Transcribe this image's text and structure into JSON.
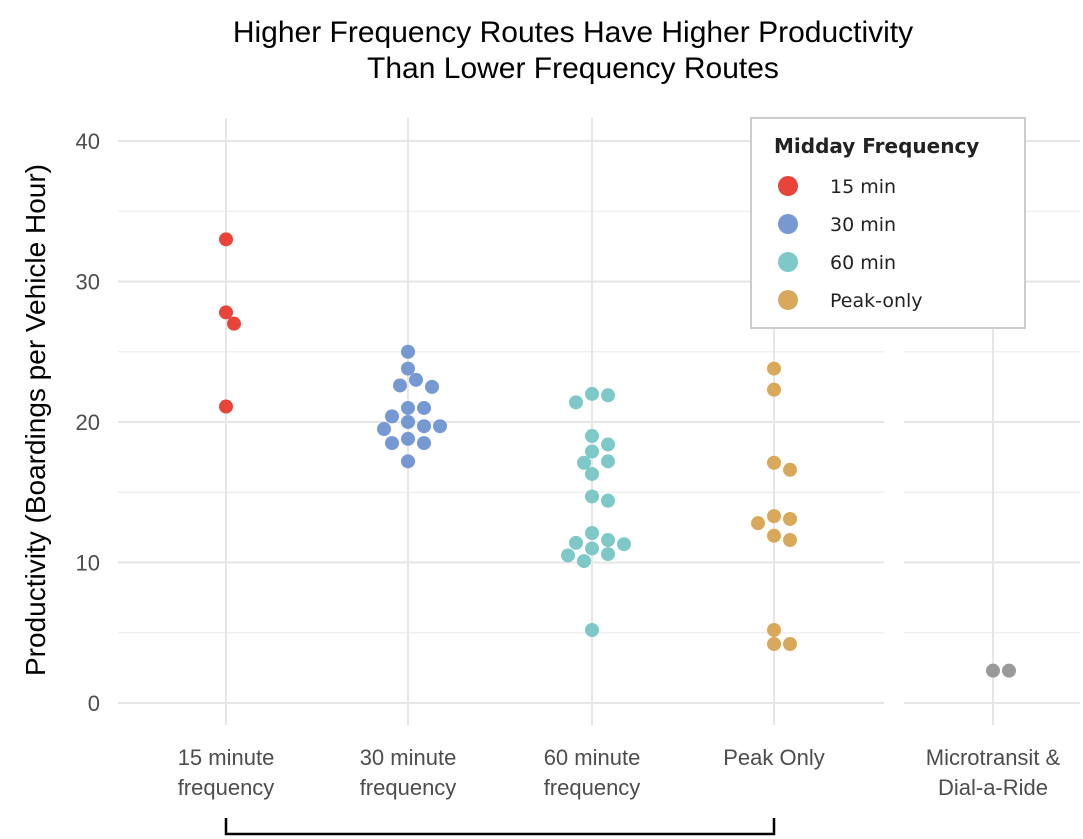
{
  "chart_data": {
    "type": "scatter",
    "title": [
      "Higher Frequency Routes Have Higher Productivity",
      "Than Lower Frequency Routes"
    ],
    "xlabel": "",
    "ylabel": "Productivity (Boardings per Vehicle Hour)",
    "ylim": [
      0,
      40
    ],
    "yticks": [
      0,
      10,
      20,
      30,
      40
    ],
    "grid": true,
    "legend_position": "top-right",
    "legend": {
      "title": "Midday Frequency",
      "entries": [
        {
          "label": "15 min",
          "color": "#e8443a"
        },
        {
          "label": "30 min",
          "color": "#7699d4"
        },
        {
          "label": "60 min",
          "color": "#7ec8c8"
        },
        {
          "label": "Peak-only",
          "color": "#d9a95b"
        }
      ]
    },
    "panels": [
      {
        "categories": [
          [
            "15 minute",
            "frequency"
          ],
          [
            "30 minute",
            "frequency"
          ],
          [
            "60 minute",
            "frequency"
          ],
          [
            "Peak Only"
          ]
        ]
      },
      {
        "categories": [
          [
            "Microtransit &",
            "Dial-a-Ride"
          ]
        ]
      }
    ],
    "series": [
      {
        "name": "15 min",
        "color": "#e8443a",
        "panel": 0,
        "category": 0,
        "values": [
          33.0,
          27.8,
          27.0,
          21.1
        ]
      },
      {
        "name": "30 min",
        "color": "#7699d4",
        "panel": 0,
        "category": 1,
        "values": [
          25.0,
          23.8,
          23.0,
          22.6,
          22.5,
          21.0,
          21.0,
          20.4,
          20.0,
          19.7,
          19.7,
          19.5,
          18.8,
          18.5,
          18.5,
          17.2
        ]
      },
      {
        "name": "60 min",
        "color": "#7ec8c8",
        "panel": 0,
        "category": 2,
        "values": [
          22.0,
          21.9,
          21.4,
          19.0,
          18.4,
          17.9,
          17.2,
          17.1,
          16.3,
          14.7,
          14.4,
          12.1,
          11.6,
          11.4,
          11.3,
          11.0,
          10.6,
          10.5,
          10.1,
          5.2
        ]
      },
      {
        "name": "Peak-only",
        "color": "#d9a95b",
        "panel": 0,
        "category": 3,
        "values": [
          23.8,
          22.3,
          17.1,
          16.6,
          13.3,
          13.1,
          12.8,
          11.9,
          11.6,
          5.2,
          4.2,
          4.2
        ]
      },
      {
        "color": "#999999",
        "panel": 1,
        "category": 0,
        "values": [
          2.3,
          2.3
        ]
      }
    ]
  }
}
